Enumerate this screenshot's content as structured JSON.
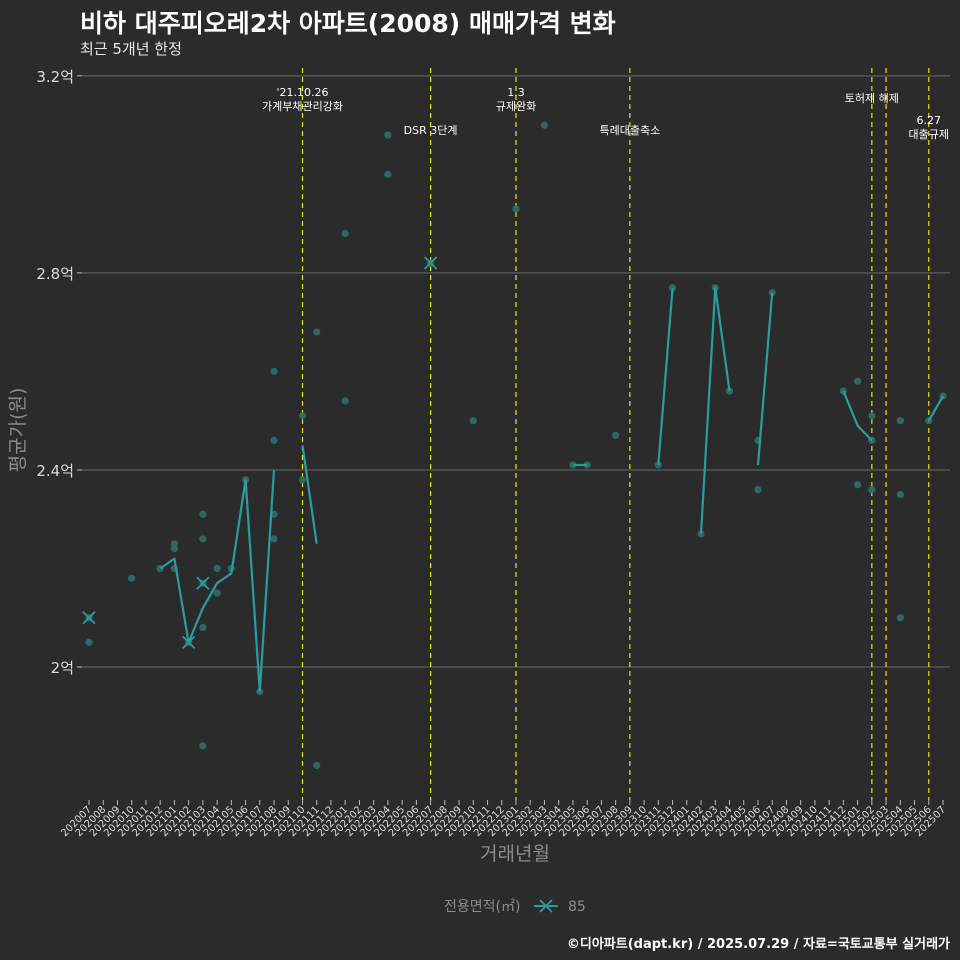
{
  "header": {
    "title": "비하 대주피오레2차 아파트(2008) 매매가격 변화",
    "subtitle": "최근 5개년 한정"
  },
  "caption": "©디아파트(dapt.kr) / 2025.07.29 / 자료=국토교통부 실거래가",
  "legend": {
    "title": "전용면적(㎡)",
    "items": [
      {
        "label": "85",
        "color": "#2a9d9f"
      }
    ]
  },
  "colors": {
    "line": "#2a9d9f",
    "point": "#2f6f6a",
    "event": "#e6e600",
    "grid": "#555555"
  },
  "chart_data": {
    "type": "line",
    "title": "비하 대주피오레2차 아파트(2008) 매매가격 변화",
    "xlabel": "거래년월",
    "ylabel": "평균가(원)",
    "ylim": [
      1.73,
      3.22
    ],
    "yticks": [
      {
        "value": 2.0,
        "label": "2억"
      },
      {
        "value": 2.4,
        "label": "2.4억"
      },
      {
        "value": 2.8,
        "label": "2.8억"
      },
      {
        "value": 3.2,
        "label": "3.2억"
      }
    ],
    "categories": [
      "202007",
      "202008",
      "202009",
      "202010",
      "202011",
      "202012",
      "202101",
      "202102",
      "202103",
      "202104",
      "202105",
      "202106",
      "202107",
      "202108",
      "202109",
      "202110",
      "202111",
      "202112",
      "202201",
      "202202",
      "202203",
      "202204",
      "202205",
      "202206",
      "202207",
      "202208",
      "202209",
      "202210",
      "202211",
      "202212",
      "202301",
      "202302",
      "202303",
      "202304",
      "202305",
      "202306",
      "202307",
      "202308",
      "202309",
      "202310",
      "202311",
      "202312",
      "202401",
      "202402",
      "202403",
      "202404",
      "202405",
      "202406",
      "202407",
      "202408",
      "202409",
      "202410",
      "202411",
      "202412",
      "202501",
      "202502",
      "202503",
      "202504",
      "202505",
      "202506",
      "202507"
    ],
    "series": [
      {
        "name": "85",
        "segments": [
          [
            [
              "202012",
              2.2
            ],
            [
              "202101",
              2.22
            ],
            [
              "202102",
              2.05
            ],
            [
              "202103",
              2.12
            ],
            [
              "202104",
              2.17
            ],
            [
              "202105",
              2.19
            ],
            [
              "202106",
              2.38
            ],
            [
              "202107",
              1.95
            ],
            [
              "202108",
              2.4
            ]
          ],
          [
            [
              "202110",
              2.45
            ],
            [
              "202111",
              2.25
            ]
          ],
          [
            [
              "202305",
              2.41
            ],
            [
              "202306",
              2.41
            ]
          ],
          [
            [
              "202311",
              2.41
            ],
            [
              "202312",
              2.77
            ]
          ],
          [
            [
              "202402",
              2.27
            ],
            [
              "202403",
              2.77
            ],
            [
              "202404",
              2.56
            ]
          ],
          [
            [
              "202406",
              2.41
            ],
            [
              "202407",
              2.76
            ]
          ],
          [
            [
              "202412",
              2.56
            ],
            [
              "202501",
              2.49
            ],
            [
              "202502",
              2.46
            ]
          ],
          [
            [
              "202506",
              2.5
            ],
            [
              "202507",
              2.55
            ]
          ]
        ],
        "markers": [
          [
            "202007",
            2.1
          ],
          [
            "202102",
            2.05
          ],
          [
            "202103",
            2.17
          ],
          [
            "202207",
            2.82
          ]
        ]
      }
    ],
    "points": [
      [
        "202007",
        2.1
      ],
      [
        "202007",
        2.05
      ],
      [
        "202010",
        2.18
      ],
      [
        "202012",
        2.2
      ],
      [
        "202101",
        2.24
      ],
      [
        "202101",
        2.25
      ],
      [
        "202101",
        2.2
      ],
      [
        "202102",
        2.05
      ],
      [
        "202103",
        2.31
      ],
      [
        "202103",
        2.26
      ],
      [
        "202103",
        2.17
      ],
      [
        "202103",
        2.08
      ],
      [
        "202103",
        1.84
      ],
      [
        "202104",
        2.2
      ],
      [
        "202104",
        2.15
      ],
      [
        "202105",
        2.2
      ],
      [
        "202106",
        2.38
      ],
      [
        "202107",
        1.95
      ],
      [
        "202108",
        2.6
      ],
      [
        "202108",
        2.46
      ],
      [
        "202108",
        2.31
      ],
      [
        "202108",
        2.26
      ],
      [
        "202110",
        2.51
      ],
      [
        "202110",
        2.38
      ],
      [
        "202111",
        2.68
      ],
      [
        "202111",
        1.8
      ],
      [
        "202201",
        2.88
      ],
      [
        "202201",
        2.54
      ],
      [
        "202204",
        3.08
      ],
      [
        "202204",
        3.0
      ],
      [
        "202207",
        2.82
      ],
      [
        "202210",
        2.5
      ],
      [
        "202301",
        2.93
      ],
      [
        "202303",
        3.1
      ],
      [
        "202305",
        2.41
      ],
      [
        "202306",
        2.41
      ],
      [
        "202308",
        2.47
      ],
      [
        "202311",
        2.41
      ],
      [
        "202312",
        2.77
      ],
      [
        "202402",
        2.27
      ],
      [
        "202403",
        2.77
      ],
      [
        "202404",
        2.56
      ],
      [
        "202406",
        2.46
      ],
      [
        "202406",
        2.36
      ],
      [
        "202407",
        2.76
      ],
      [
        "202412",
        2.56
      ],
      [
        "202501",
        2.58
      ],
      [
        "202501",
        2.37
      ],
      [
        "202502",
        2.51
      ],
      [
        "202502",
        2.46
      ],
      [
        "202502",
        2.36
      ],
      [
        "202504",
        2.5
      ],
      [
        "202504",
        2.35
      ],
      [
        "202504",
        2.1
      ],
      [
        "202506",
        2.5
      ],
      [
        "202507",
        2.55
      ]
    ],
    "events": [
      {
        "x": "202110",
        "lines": [
          "'21.10.26",
          "가계부채관리강화"
        ],
        "level": 0
      },
      {
        "x": "202207",
        "lines": [
          "DSR 3단계"
        ],
        "level": 2
      },
      {
        "x": "202301",
        "lines": [
          "1.3",
          "규제완화"
        ],
        "level": 0
      },
      {
        "x": "202309",
        "lines": [
          "특례대출축소"
        ],
        "level": 2
      },
      {
        "x": "202502",
        "lines": [
          "토허제 해제"
        ],
        "level": 1
      },
      {
        "x": "202503",
        "lines": [],
        "level": 1
      },
      {
        "x": "202506",
        "lines": [
          "6.27",
          "대출규제"
        ],
        "level": 3
      }
    ]
  }
}
